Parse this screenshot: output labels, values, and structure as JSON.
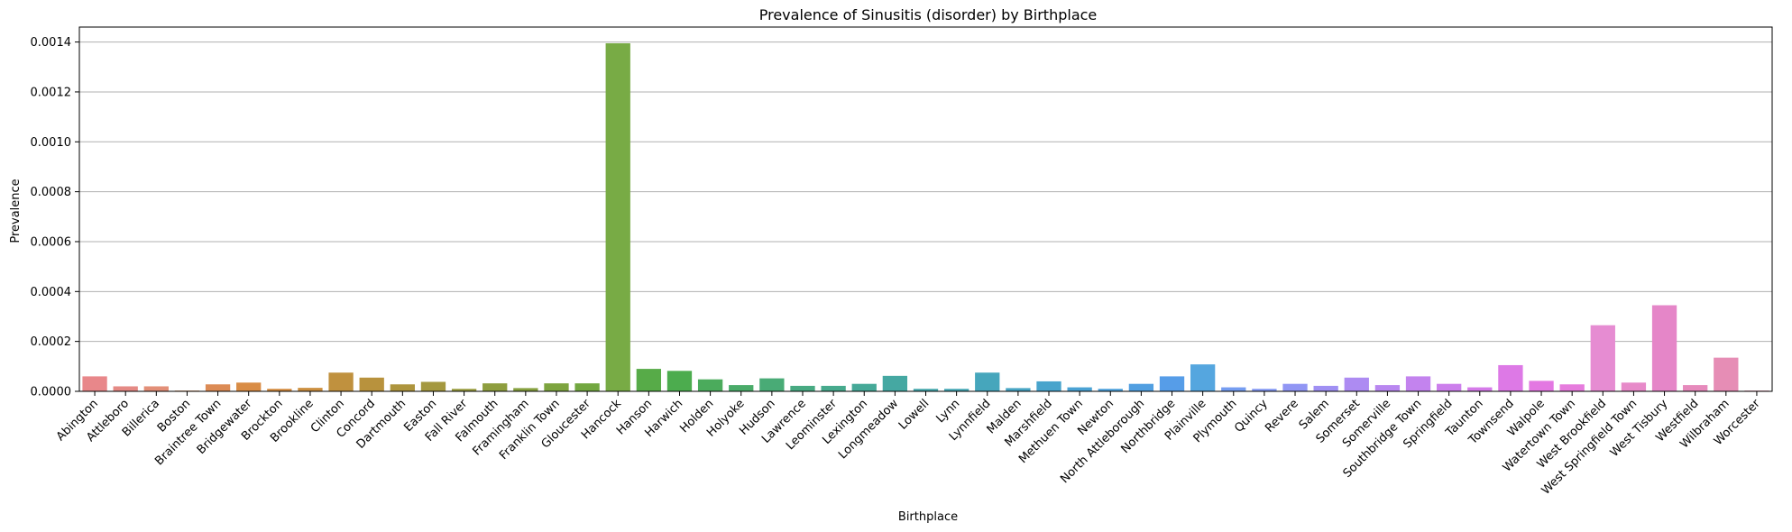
{
  "chart_data": {
    "type": "bar",
    "title": "Prevalence of Sinusitis (disorder) by Birthplace",
    "xlabel": "Birthplace",
    "ylabel": "Prevalence",
    "ylim": [
      0,
      0.00146
    ],
    "yticks": [
      0.0,
      0.0002,
      0.0004,
      0.0006,
      0.0008,
      0.001,
      0.0012,
      0.0014
    ],
    "ytick_labels": [
      "0.0000",
      "0.0002",
      "0.0004",
      "0.0006",
      "0.0008",
      "0.0010",
      "0.0012",
      "0.0014"
    ],
    "grid": "horizontal",
    "categories": [
      "Abington",
      "Attleboro",
      "Billerica",
      "Boston",
      "Braintree Town",
      "Bridgewater",
      "Brockton",
      "Brookline",
      "Clinton",
      "Concord",
      "Dartmouth",
      "Easton",
      "Fall River",
      "Falmouth",
      "Framingham",
      "Franklin Town",
      "Gloucester",
      "Hancock",
      "Hanson",
      "Harwich",
      "Holden",
      "Holyoke",
      "Hudson",
      "Lawrence",
      "Leominster",
      "Lexington",
      "Longmeadow",
      "Lowell",
      "Lynn",
      "Lynnfield",
      "Malden",
      "Marshfield",
      "Methuen Town",
      "Newton",
      "North Attleborough",
      "Northbridge",
      "Plainville",
      "Plymouth",
      "Quincy",
      "Revere",
      "Salem",
      "Somerset",
      "Somerville",
      "Southbridge Town",
      "Springfield",
      "Taunton",
      "Townsend",
      "Walpole",
      "Watertown Town",
      "West Brookfield",
      "West Springfield Town",
      "West Tisbury",
      "Westfield",
      "Wilbraham",
      "Worcester"
    ],
    "values": [
      6e-05,
      2e-05,
      2e-05,
      3e-06,
      2.8e-05,
      3.5e-05,
      1e-05,
      1.4e-05,
      7.5e-05,
      5.5e-05,
      2.8e-05,
      3.8e-05,
      1e-05,
      3.2e-05,
      1.3e-05,
      3.2e-05,
      3.2e-05,
      0.001395,
      9e-05,
      8.2e-05,
      4.8e-05,
      2.5e-05,
      5.2e-05,
      2.2e-05,
      2.2e-05,
      3e-05,
      6.2e-05,
      1e-05,
      1e-05,
      7.5e-05,
      1.3e-05,
      4e-05,
      1.6e-05,
      1e-05,
      3e-05,
      6e-05,
      0.000108,
      1.6e-05,
      1e-05,
      3e-05,
      2.2e-05,
      5.5e-05,
      2.5e-05,
      6e-05,
      3e-05,
      1.6e-05,
      0.000105,
      4.2e-05,
      2.8e-05,
      0.000265,
      3.5e-05,
      0.000345,
      2.5e-05,
      0.000135,
      3e-06
    ],
    "colors": [
      "#e8878a",
      "#e58a85",
      "#e38f78",
      "#e29565",
      "#dc8b55",
      "#d98c45",
      "#d48b3e",
      "#cc8f3f",
      "#c0913e",
      "#b8923d",
      "#ae953e",
      "#a4983f",
      "#999c3f",
      "#8e9e3f",
      "#86a03f",
      "#7da43f",
      "#72a740",
      "#78ab45",
      "#57ab48",
      "#4cac4e",
      "#4bab5c",
      "#4aab69",
      "#49ab76",
      "#48aa82",
      "#47aa8d",
      "#46a998",
      "#45a8a2",
      "#45a7ac",
      "#45a7b4",
      "#46a6bc",
      "#47a5c4",
      "#48a4cc",
      "#4aa2d4",
      "#4ca1db",
      "#519fe1",
      "#569de8",
      "#55a6df",
      "#759df1",
      "#8399f3",
      "#9196f4",
      "#a090f3",
      "#ad8bf2",
      "#b987f0",
      "#c383ee",
      "#cc7fec",
      "#d57be9",
      "#dd79e6",
      "#e378e2",
      "#e67cdd",
      "#e68cd2",
      "#e78ac9",
      "#e586c8",
      "#e68abc",
      "#e68db5",
      "#e690a7"
    ]
  }
}
